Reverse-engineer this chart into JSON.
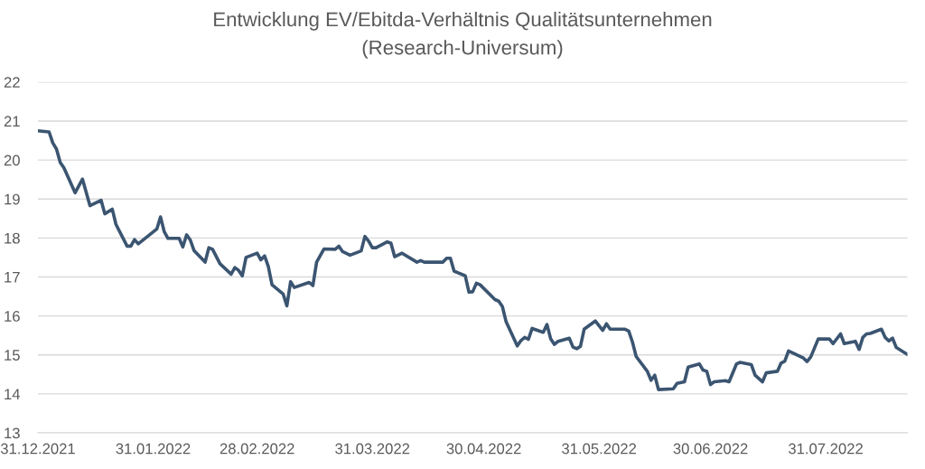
{
  "chart_data": {
    "type": "line",
    "title": "Entwicklung EV/Ebitda-Verhältnis Qualitätsunternehmen",
    "subtitle": "(Research-Universum)",
    "x": [
      "2021-12-31",
      "2022-01-03",
      "2022-01-04",
      "2022-01-05",
      "2022-01-06",
      "2022-01-07",
      "2022-01-10",
      "2022-01-12",
      "2022-01-14",
      "2022-01-17",
      "2022-01-18",
      "2022-01-20",
      "2022-01-21",
      "2022-01-24",
      "2022-01-25",
      "2022-01-26",
      "2022-01-27",
      "2022-02-01",
      "2022-02-02",
      "2022-02-03",
      "2022-02-04",
      "2022-02-07",
      "2022-02-08",
      "2022-02-09",
      "2022-02-10",
      "2022-02-11",
      "2022-02-14",
      "2022-02-15",
      "2022-02-16",
      "2022-02-18",
      "2022-02-21",
      "2022-02-22",
      "2022-02-23",
      "2022-02-24",
      "2022-02-25",
      "2022-02-28",
      "2022-03-01",
      "2022-03-02",
      "2022-03-03",
      "2022-03-04",
      "2022-03-07",
      "2022-03-08",
      "2022-03-09",
      "2022-03-10",
      "2022-03-14",
      "2022-03-15",
      "2022-03-16",
      "2022-03-18",
      "2022-03-21",
      "2022-03-22",
      "2022-03-23",
      "2022-03-25",
      "2022-03-28",
      "2022-03-29",
      "2022-03-30",
      "2022-03-31",
      "2022-04-01",
      "2022-04-04",
      "2022-04-05",
      "2022-04-06",
      "2022-04-08",
      "2022-04-12",
      "2022-04-13",
      "2022-04-14",
      "2022-04-19",
      "2022-04-20",
      "2022-04-21",
      "2022-04-22",
      "2022-04-25",
      "2022-04-26",
      "2022-04-27",
      "2022-04-28",
      "2022-04-29",
      "2022-05-03",
      "2022-05-04",
      "2022-05-05",
      "2022-05-06",
      "2022-05-09",
      "2022-05-10",
      "2022-05-11",
      "2022-05-12",
      "2022-05-13",
      "2022-05-16",
      "2022-05-17",
      "2022-05-18",
      "2022-05-19",
      "2022-05-20",
      "2022-05-23",
      "2022-05-24",
      "2022-05-25",
      "2022-05-26",
      "2022-05-27",
      "2022-05-30",
      "2022-06-01",
      "2022-06-02",
      "2022-06-03",
      "2022-06-07",
      "2022-06-08",
      "2022-06-09",
      "2022-06-10",
      "2022-06-13",
      "2022-06-14",
      "2022-06-15",
      "2022-06-16",
      "2022-06-20",
      "2022-06-21",
      "2022-06-23",
      "2022-06-24",
      "2022-06-27",
      "2022-06-28",
      "2022-06-29",
      "2022-06-30",
      "2022-07-01",
      "2022-07-04",
      "2022-07-05",
      "2022-07-07",
      "2022-07-08",
      "2022-07-11",
      "2022-07-12",
      "2022-07-14",
      "2022-07-15",
      "2022-07-18",
      "2022-07-19",
      "2022-07-20",
      "2022-07-21",
      "2022-07-25",
      "2022-07-26",
      "2022-07-27",
      "2022-07-29",
      "2022-08-01",
      "2022-08-02",
      "2022-08-04",
      "2022-08-05",
      "2022-08-08",
      "2022-08-09",
      "2022-08-10",
      "2022-08-11",
      "2022-08-12",
      "2022-08-15",
      "2022-08-16",
      "2022-08-17",
      "2022-08-18",
      "2022-08-19",
      "2022-08-22"
    ],
    "series": [
      {
        "color": "#3b5571",
        "values": [
          20.75,
          20.72,
          20.44,
          20.28,
          19.94,
          19.8,
          19.16,
          19.51,
          18.83,
          18.97,
          18.62,
          18.74,
          18.35,
          17.79,
          17.79,
          17.96,
          17.85,
          18.23,
          18.54,
          18.16,
          17.99,
          17.99,
          17.77,
          18.08,
          17.95,
          17.68,
          17.38,
          17.75,
          17.71,
          17.34,
          17.07,
          17.24,
          17.17,
          17.03,
          17.5,
          17.61,
          17.44,
          17.54,
          17.27,
          16.8,
          16.56,
          16.26,
          16.88,
          16.73,
          16.86,
          16.78,
          17.38,
          17.72,
          17.71,
          17.79,
          17.65,
          17.56,
          17.67,
          18.04,
          17.92,
          17.75,
          17.75,
          17.9,
          17.87,
          17.52,
          17.61,
          17.38,
          17.42,
          17.38,
          17.38,
          17.48,
          17.48,
          17.15,
          17.03,
          16.61,
          16.62,
          16.84,
          16.8,
          16.42,
          16.38,
          16.24,
          15.85,
          15.23,
          15.37,
          15.45,
          15.4,
          15.68,
          15.58,
          15.78,
          15.41,
          15.27,
          15.35,
          15.43,
          15.2,
          15.16,
          15.22,
          15.66,
          15.87,
          15.63,
          15.8,
          15.66,
          15.66,
          15.61,
          15.33,
          14.96,
          14.58,
          14.35,
          14.48,
          14.11,
          14.13,
          14.27,
          14.31,
          14.69,
          14.77,
          14.61,
          14.58,
          14.24,
          14.31,
          14.34,
          14.31,
          14.77,
          14.81,
          14.75,
          14.48,
          14.31,
          14.54,
          14.58,
          14.79,
          14.84,
          15.1,
          14.92,
          14.83,
          14.95,
          15.41,
          15.41,
          15.29,
          15.54,
          15.29,
          15.35,
          15.14,
          15.45,
          15.54,
          15.55,
          15.66,
          15.45,
          15.36,
          15.43,
          15.19,
          15.01
        ]
      }
    ],
    "xlim": [
      "2021-12-31",
      "2022-08-22"
    ],
    "xticks": [
      {
        "value": "2021-12-31",
        "label": "31.12.2021"
      },
      {
        "value": "2022-01-31",
        "label": "31.01.2022"
      },
      {
        "value": "2022-02-28",
        "label": "28.02.2022"
      },
      {
        "value": "2022-03-31",
        "label": "31.03.2022"
      },
      {
        "value": "2022-04-30",
        "label": "30.04.2022"
      },
      {
        "value": "2022-05-31",
        "label": "31.05.2022"
      },
      {
        "value": "2022-06-30",
        "label": "30.06.2022"
      },
      {
        "value": "2022-07-31",
        "label": "31.07.2022"
      }
    ],
    "ylim": [
      13,
      22
    ],
    "yticks": [
      13,
      14,
      15,
      16,
      17,
      18,
      19,
      20,
      21,
      22
    ],
    "grid": "y",
    "marker": "none",
    "line_style": "solid"
  }
}
